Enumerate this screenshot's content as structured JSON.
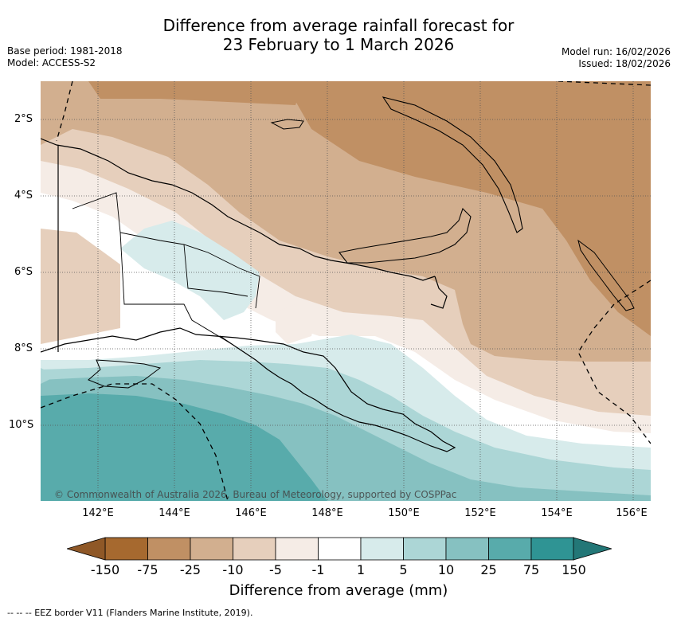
{
  "title": {
    "line1": "Difference from average rainfall forecast for",
    "line2": "23 February to 1 March 2026"
  },
  "meta": {
    "base_period": "Base period: 1981-2018",
    "model": "Model: ACCESS-S2",
    "model_run": "Model run: 16/02/2026",
    "issued": "Issued: 18/02/2026"
  },
  "map": {
    "lat_labels": [
      "2°S",
      "4°S",
      "6°S",
      "8°S",
      "10°S"
    ],
    "lon_labels": [
      "142°E",
      "144°E",
      "146°E",
      "148°E",
      "150°E",
      "152°E",
      "154°E",
      "156°E"
    ],
    "copyright": "© Commonwealth of Australia 2026, Bureau of Meteorology, supported by COSPPac"
  },
  "colorbar": {
    "labels": [
      "-150",
      "-75",
      "-25",
      "-10",
      "-5",
      "-1",
      "1",
      "5",
      "10",
      "25",
      "75",
      "150"
    ],
    "colors": [
      "#a6692f",
      "#c09064",
      "#d2af8f",
      "#e6cfbc",
      "#f5ece6",
      "#ffffff",
      "#d7ebeb",
      "#acd6d6",
      "#86c1c1",
      "#58abab",
      "#2f9494"
    ],
    "under_color": "#8f5827",
    "over_color": "#237777",
    "title": "Difference from average (mm)"
  },
  "footnote": "-- -- -- EEZ border V11 (Flanders Marine Institute, 2019)."
}
